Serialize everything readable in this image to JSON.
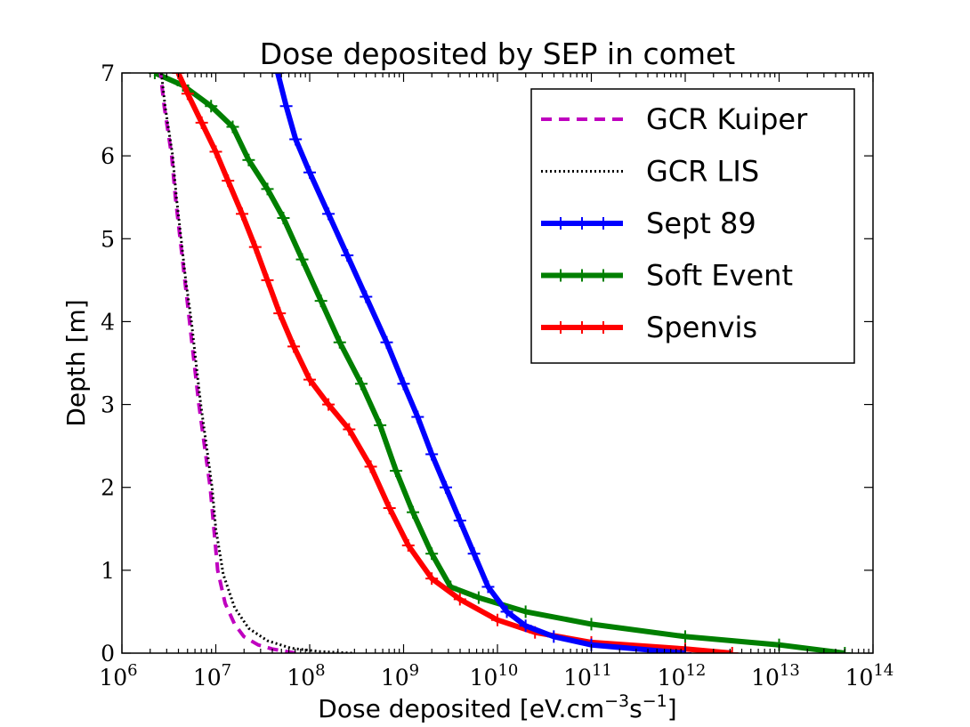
{
  "chart_data": {
    "type": "line",
    "title": "Dose deposited by SEP in comet",
    "xlabel_main": "Dose deposited [eV.cm",
    "xlabel_exp1": "−3",
    "xlabel_mid": "s",
    "xlabel_exp2": "−1",
    "xlabel_end": "]",
    "ylabel": "Depth [m]",
    "xscale": "log",
    "xlim": [
      1000000.0,
      100000000000000.0
    ],
    "ylim": [
      0,
      7
    ],
    "x_ticks": [
      {
        "base": "10",
        "exp": "6"
      },
      {
        "base": "10",
        "exp": "7"
      },
      {
        "base": "10",
        "exp": "8"
      },
      {
        "base": "10",
        "exp": "9"
      },
      {
        "base": "10",
        "exp": "10"
      },
      {
        "base": "10",
        "exp": "11"
      },
      {
        "base": "10",
        "exp": "12"
      },
      {
        "base": "10",
        "exp": "13"
      },
      {
        "base": "10",
        "exp": "14"
      }
    ],
    "y_ticks": [
      "0",
      "1",
      "2",
      "3",
      "4",
      "5",
      "6",
      "7"
    ],
    "legend_position": "top-right",
    "series": [
      {
        "name": "GCR Kuiper",
        "color": "#bf00bf",
        "style": "dashed",
        "log10_dose": [
          7.85,
          7.6,
          7.45,
          7.3,
          7.2,
          7.1,
          7.02,
          6.98,
          6.94,
          6.88,
          6.82,
          6.77,
          6.72,
          6.67,
          6.62,
          6.57,
          6.53,
          6.49,
          6.45,
          6.41
        ],
        "depth": [
          0.0,
          0.05,
          0.1,
          0.2,
          0.35,
          0.6,
          1.0,
          1.5,
          2.0,
          2.5,
          3.0,
          3.5,
          4.0,
          4.5,
          5.0,
          5.5,
          6.0,
          6.3,
          6.6,
          7.0
        ]
      },
      {
        "name": "GCR LIS",
        "color": "#000000",
        "style": "dotted",
        "log10_dose": [
          8.45,
          8.1,
          7.8,
          7.55,
          7.35,
          7.2,
          7.08,
          7.0,
          6.96,
          6.9,
          6.84,
          6.79,
          6.74,
          6.68,
          6.63,
          6.58,
          6.54,
          6.5,
          6.46,
          6.42
        ],
        "depth": [
          0.0,
          0.02,
          0.06,
          0.15,
          0.3,
          0.55,
          0.95,
          1.5,
          2.0,
          2.5,
          3.0,
          3.5,
          4.0,
          4.5,
          5.0,
          5.5,
          6.0,
          6.3,
          6.6,
          7.0
        ]
      },
      {
        "name": "Sept 89",
        "color": "#0000ff",
        "style": "solid-markers",
        "log10_dose": [
          12.0,
          11.0,
          10.6,
          10.3,
          10.1,
          9.9,
          9.75,
          9.6,
          9.45,
          9.3,
          9.15,
          9.0,
          8.82,
          8.6,
          8.4,
          8.2,
          8.0,
          7.85,
          7.75,
          7.66
        ],
        "depth": [
          0.0,
          0.1,
          0.2,
          0.33,
          0.5,
          0.8,
          1.2,
          1.6,
          2.0,
          2.4,
          2.85,
          3.25,
          3.75,
          4.3,
          4.8,
          5.3,
          5.8,
          6.2,
          6.6,
          7.0
        ]
      },
      {
        "name": "Soft Event",
        "color": "#007f00",
        "style": "solid-markers",
        "log10_dose": [
          13.7,
          13.0,
          12.0,
          11.0,
          10.3,
          9.8,
          9.5,
          9.3,
          9.1,
          8.92,
          8.75,
          8.55,
          8.32,
          8.12,
          7.92,
          7.72,
          7.55,
          7.35,
          7.18,
          6.95,
          6.65,
          6.35
        ],
        "depth": [
          0.0,
          0.1,
          0.2,
          0.35,
          0.5,
          0.67,
          0.8,
          1.2,
          1.7,
          2.2,
          2.75,
          3.25,
          3.75,
          4.25,
          4.75,
          5.25,
          5.6,
          5.95,
          6.35,
          6.6,
          6.85,
          7.0
        ]
      },
      {
        "name": "Spenvis",
        "color": "#ff0000",
        "style": "solid-markers",
        "log10_dose": [
          12.5,
          12.0,
          11.0,
          10.4,
          10.0,
          9.6,
          9.3,
          9.05,
          8.85,
          8.65,
          8.42,
          8.2,
          8.0,
          7.83,
          7.68,
          7.55,
          7.42,
          7.28,
          7.13,
          7.0,
          6.85,
          6.7,
          6.6
        ],
        "depth": [
          0.0,
          0.05,
          0.13,
          0.25,
          0.4,
          0.65,
          0.9,
          1.3,
          1.75,
          2.25,
          2.7,
          3.0,
          3.3,
          3.7,
          4.1,
          4.5,
          4.9,
          5.3,
          5.7,
          6.05,
          6.4,
          6.75,
          7.0
        ]
      }
    ]
  }
}
